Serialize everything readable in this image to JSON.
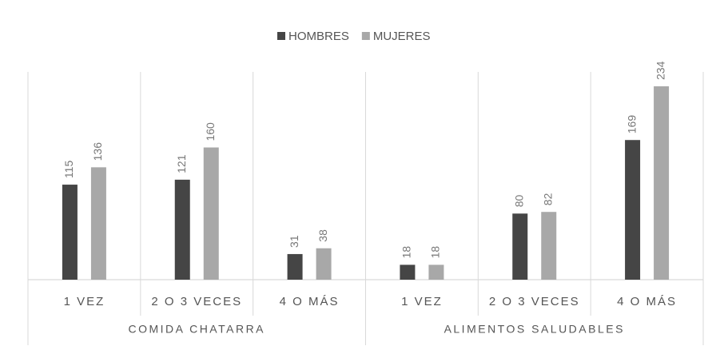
{
  "chart_data": {
    "type": "bar",
    "groups": [
      {
        "name": "COMIDA CHATARRA",
        "categories": [
          "1 VEZ",
          "2 O 3 VECES",
          "4 O MÁS"
        ]
      },
      {
        "name": "ALIMENTOS SALUDABLES",
        "categories": [
          "1 VEZ",
          "2 O 3 VECES",
          "4 O MÁS"
        ]
      }
    ],
    "series": [
      {
        "name": "HOMBRES",
        "color": "#454545",
        "values": [
          115,
          121,
          31,
          18,
          80,
          169
        ]
      },
      {
        "name": "MUJERES",
        "color": "#a8a8a8",
        "values": [
          136,
          160,
          38,
          18,
          82,
          234
        ]
      }
    ],
    "legend": "top"
  }
}
